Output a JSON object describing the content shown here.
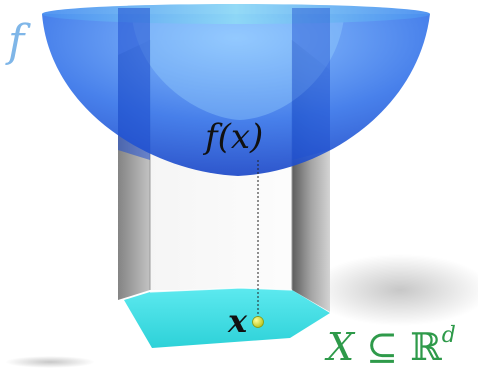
{
  "labels": {
    "function_name": "f",
    "function_value": "f(x)",
    "point": "x",
    "domain": {
      "variable": "X",
      "relation": "⊆",
      "space": "ℝ",
      "exponent": "d"
    }
  },
  "colors": {
    "bowl": "#2f6fe8",
    "bowl_rim": "#6ec6f0",
    "prism_side": "#8a8a8a",
    "base": "#3ee0e6",
    "point": "#d8e63a",
    "function_label": "#7fb6e8",
    "domain_label": "#2e9a4a"
  }
}
